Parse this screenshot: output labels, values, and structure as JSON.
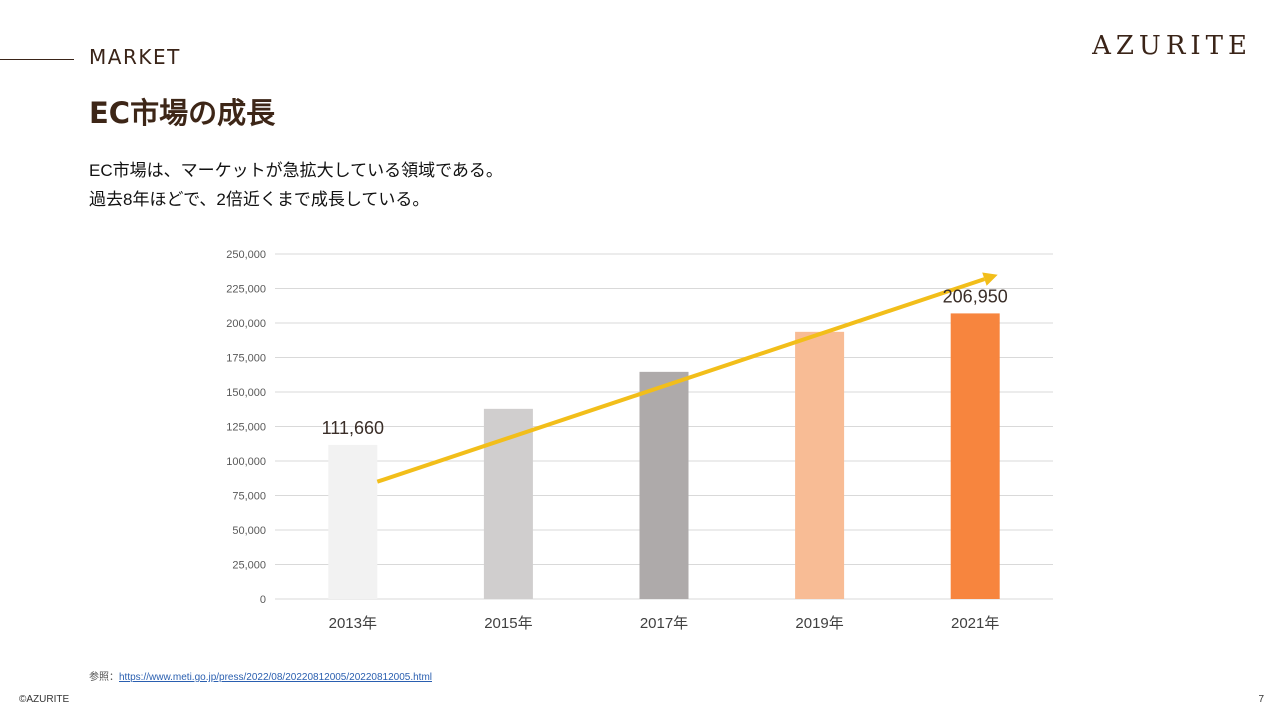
{
  "header": {
    "section_label": "MARKET",
    "brand": "AZURITE",
    "title": "EC市場の成長"
  },
  "description": {
    "lines": [
      "EC市場は、マーケットが急拡大している領域である。",
      "過去8年ほどで、2倍近くまで成長している。"
    ]
  },
  "source": {
    "prefix": "参照：",
    "link_text": "https://www.meti.go.jp/press/2022/08/20220812005/20220812005.html"
  },
  "footer": {
    "copyright": "©AZURITE",
    "page_number": "7"
  },
  "colors": {
    "bars": [
      "#f2f2f2",
      "#d0cece",
      "#aeaaaa",
      "#f8bc95",
      "#f7853e"
    ],
    "trend_arrow": "#f2be1a",
    "grid": "#d9d9d9",
    "axis_text": "#595959",
    "label_text": "#3a2e28"
  },
  "chart_data": {
    "type": "bar",
    "title": "",
    "xlabel": "",
    "ylabel": "",
    "categories": [
      "2013年",
      "2015年",
      "2017年",
      "2019年",
      "2021年"
    ],
    "values": [
      111660,
      137800,
      164600,
      193600,
      206950
    ],
    "data_labels": [
      {
        "category": "2013年",
        "text": "111,660"
      },
      {
        "category": "2021年",
        "text": "206,950"
      }
    ],
    "ylim": [
      0,
      250000
    ],
    "yticks": [
      0,
      25000,
      50000,
      75000,
      100000,
      125000,
      150000,
      175000,
      200000,
      225000,
      250000
    ],
    "ytick_labels": [
      "0",
      "25,000",
      "50,000",
      "75,000",
      "100,000",
      "125,000",
      "150,000",
      "175,000",
      "200,000",
      "225,000",
      "250,000"
    ],
    "grid": true,
    "legend": "none",
    "annotations": [
      {
        "type": "trend-arrow",
        "from": {
          "category": "2013年",
          "value": 85000
        },
        "to": {
          "category": "2021年",
          "value": 235000
        },
        "description": "upward growth arrow"
      }
    ]
  }
}
